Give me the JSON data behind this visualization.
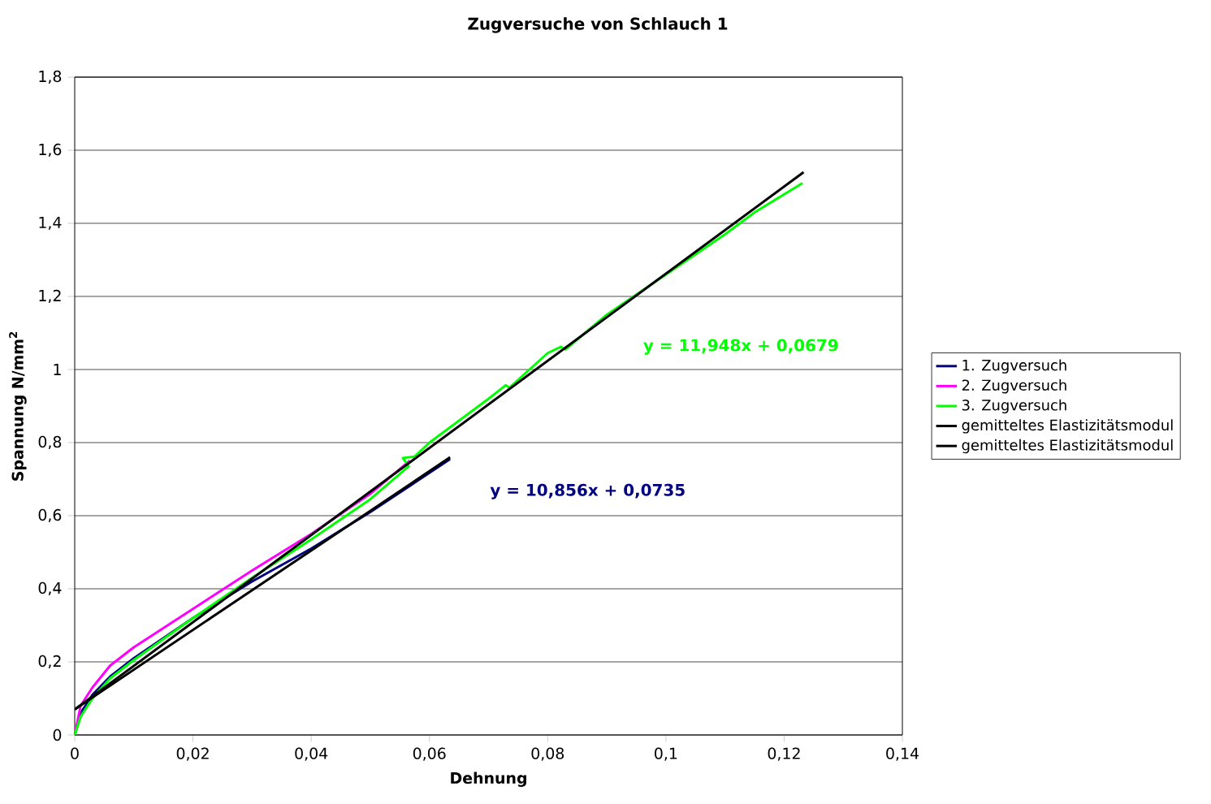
{
  "chart_data": {
    "type": "line",
    "title": "Zugversuche von Schlauch 1",
    "xlabel": "Dehnung",
    "ylabel": "Spannung N/mm$^{2}$",
    "xlim": [
      0,
      0.14
    ],
    "ylim": [
      0,
      1.8
    ],
    "xticks": [
      0,
      {
        "value": 0.02,
        "label": "0,02"
      },
      {
        "value": 0.04,
        "label": "0,04"
      },
      {
        "value": 0.06,
        "label": "0,06"
      },
      {
        "value": 0.08,
        "label": "0,08"
      },
      {
        "value": 0.1,
        "label": "0,1"
      },
      {
        "value": 0.12,
        "label": "0,12"
      },
      {
        "value": 0.14,
        "label": "0,14"
      }
    ],
    "yticks": [
      0,
      {
        "value": 0.2,
        "label": "0,2"
      },
      {
        "value": 0.4,
        "label": "0,4"
      },
      {
        "value": 0.6,
        "label": "0,6"
      },
      {
        "value": 0.8,
        "label": "0,8"
      },
      1,
      {
        "value": 1.2,
        "label": "1,2"
      },
      {
        "value": 1.4,
        "label": "1,4"
      },
      {
        "value": 1.6,
        "label": "1,6"
      },
      {
        "value": 1.8,
        "label": "1,8"
      }
    ],
    "grid": "y",
    "legend": "right",
    "marker": "none",
    "line_style": "solid",
    "series": [
      {
        "name": "1. Zugversuch",
        "color": "#000080",
        "x": [
          0,
          0.001,
          0.003,
          0.006,
          0.01,
          0.02,
          0.03,
          0.04,
          0.05,
          0.0635
        ],
        "values": [
          0,
          0.06,
          0.11,
          0.16,
          0.21,
          0.32,
          0.42,
          0.51,
          0.61,
          0.755
        ]
      },
      {
        "name": "2. Zugversuch",
        "color": "#ff00ff",
        "x": [
          0,
          0.001,
          0.003,
          0.006,
          0.01,
          0.02,
          0.03,
          0.04,
          0.05,
          0.0567
        ],
        "values": [
          0,
          0.08,
          0.13,
          0.19,
          0.24,
          0.345,
          0.45,
          0.55,
          0.66,
          0.751
        ]
      },
      {
        "name": "3. Zugversuch",
        "color": "#00ff00",
        "x": [
          0,
          0.001,
          0.003,
          0.006,
          0.01,
          0.02,
          0.03,
          0.04,
          0.05,
          0.0565,
          0.0555,
          0.0575,
          0.06,
          0.07,
          0.0729,
          0.0735,
          0.08,
          0.0822,
          0.083,
          0.09,
          0.1,
          0.11,
          0.115,
          0.1231
        ],
        "values": [
          0,
          0.05,
          0.1,
          0.155,
          0.205,
          0.32,
          0.43,
          0.535,
          0.645,
          0.735,
          0.758,
          0.762,
          0.8,
          0.92,
          0.957,
          0.95,
          1.045,
          1.062,
          1.055,
          1.15,
          1.26,
          1.37,
          1.43,
          1.51
        ]
      },
      {
        "name": "gemitteltes Elastizitätsmodul",
        "color": "#000000",
        "x": [
          0,
          0.1233
        ],
        "values": [
          0.07,
          1.54
        ]
      },
      {
        "name": "gemitteltes Elastizitätsmodul",
        "color": "#000000",
        "x": [
          0,
          0.0635
        ],
        "values": [
          0.07,
          0.76
        ]
      }
    ],
    "annotations": [
      "y = 11,948x + 0,0679",
      "y = 10,856x + 0,0735"
    ]
  }
}
